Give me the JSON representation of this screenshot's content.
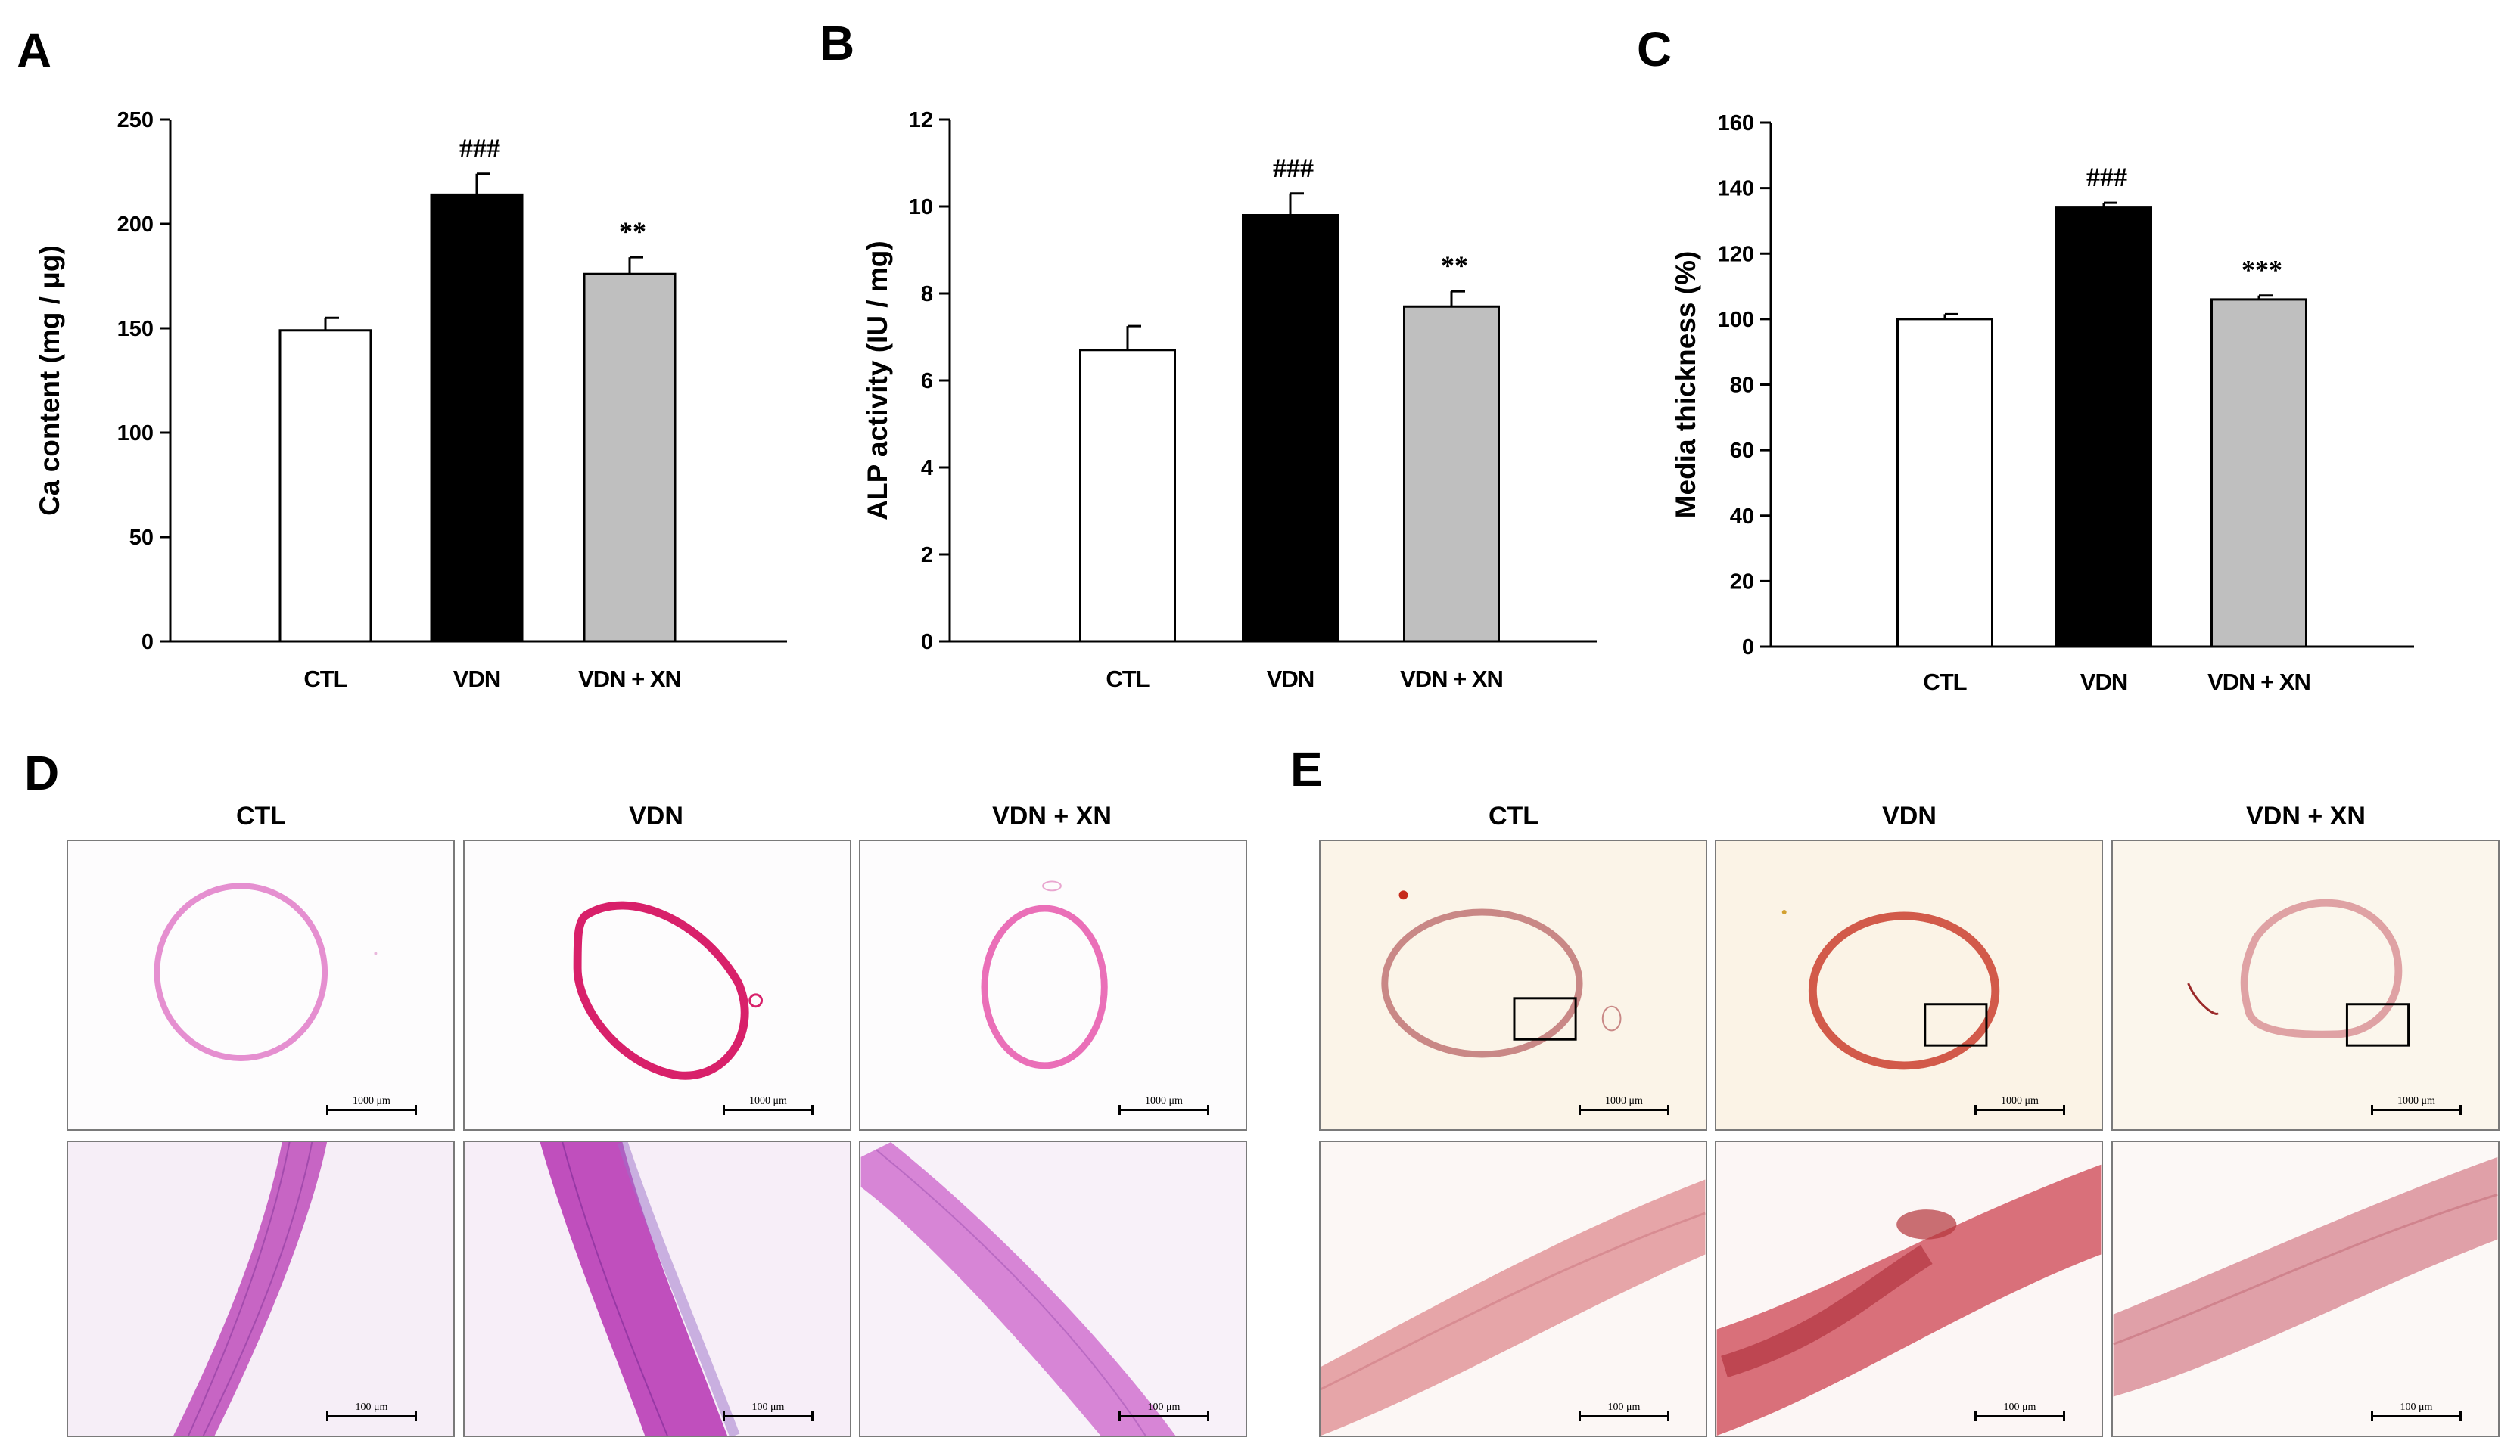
{
  "panels": {
    "A": "A",
    "B": "B",
    "C": "C",
    "D": "D",
    "E": "E"
  },
  "chart_data": [
    {
      "type": "bar",
      "panel": "A",
      "categories": [
        "CTL",
        "VDN",
        "VDN + XN"
      ],
      "values": [
        149,
        214,
        176
      ],
      "errors": [
        6,
        10,
        8
      ],
      "annotations": [
        "",
        "###",
        "**"
      ],
      "colors": [
        "#ffffff",
        "#000000",
        "#bfbfbf"
      ],
      "ylabel": "Ca content (mg / μg)",
      "ylim": [
        0,
        250
      ],
      "yticks": [
        0,
        50,
        100,
        150,
        200,
        250
      ]
    },
    {
      "type": "bar",
      "panel": "B",
      "categories": [
        "CTL",
        "VDN",
        "VDN + XN"
      ],
      "values": [
        6.7,
        9.8,
        7.7
      ],
      "errors": [
        0.55,
        0.5,
        0.35
      ],
      "annotations": [
        "",
        "###",
        "**"
      ],
      "colors": [
        "#ffffff",
        "#000000",
        "#bfbfbf"
      ],
      "ylabel": "ALP activity (IU / mg)",
      "ylim": [
        0,
        12
      ],
      "yticks": [
        0,
        2,
        4,
        6,
        8,
        10,
        12
      ]
    },
    {
      "type": "bar",
      "panel": "C",
      "categories": [
        "CTL",
        "VDN",
        "VDN + XN"
      ],
      "values": [
        100,
        134,
        106
      ],
      "errors": [
        1.5,
        1.5,
        1.2
      ],
      "annotations": [
        "",
        "###",
        "***"
      ],
      "colors": [
        "#ffffff",
        "#000000",
        "#bfbfbf"
      ],
      "ylabel": "Media thickness (%)",
      "ylim": [
        0,
        160
      ],
      "yticks": [
        0,
        20,
        40,
        60,
        80,
        100,
        120,
        140,
        160
      ]
    }
  ],
  "micrographs": {
    "D": {
      "columns": [
        "CTL",
        "VDN",
        "VDN + XN"
      ],
      "scale_low": "1000 μm",
      "scale_high": "100 μm"
    },
    "E": {
      "columns": [
        "CTL",
        "VDN",
        "VDN + XN"
      ],
      "scale_low": "1000 μm",
      "scale_high": "100 μm"
    }
  }
}
